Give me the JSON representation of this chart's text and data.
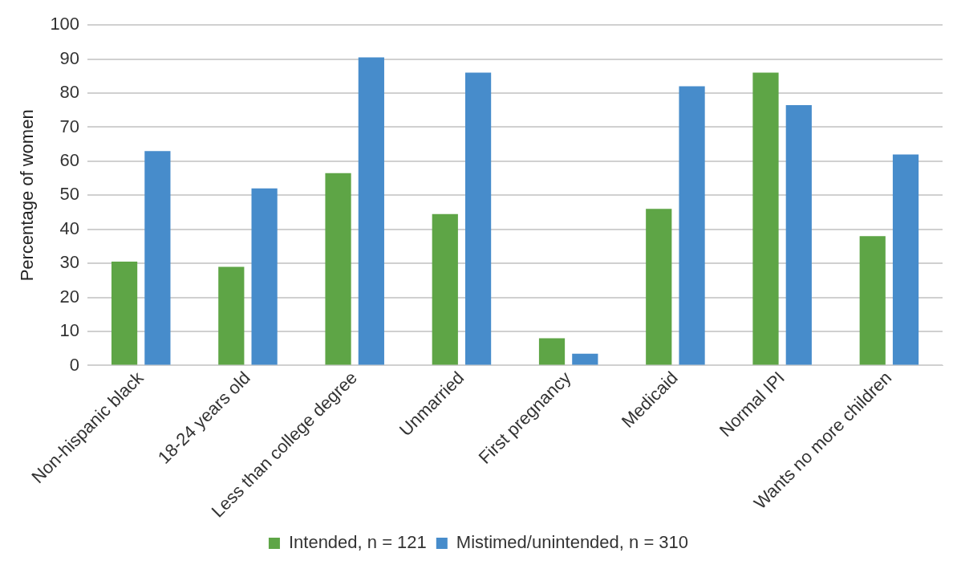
{
  "chart_data": {
    "type": "bar",
    "ylabel": "Percentage of women",
    "categories": [
      "Non-hispanic black",
      "18-24 years old",
      "Less than college degree",
      "Unmarried",
      "First pregnancy",
      "Medicaid",
      "Normal IPI",
      "Wants no more children"
    ],
    "series": [
      {
        "name": "Intended, n = 121",
        "color": "#5ea546",
        "values": [
          30.5,
          29,
          56.5,
          44.5,
          8,
          46,
          86,
          38
        ]
      },
      {
        "name": "Mistimed/unintended, n = 310",
        "color": "#478ccb",
        "values": [
          63,
          52,
          90.5,
          86,
          3.5,
          82,
          76.5,
          62
        ]
      }
    ],
    "ylim": [
      0,
      100
    ],
    "yticks": [
      0,
      10,
      20,
      30,
      40,
      50,
      60,
      70,
      80,
      90,
      100
    ],
    "grid": "y",
    "legend": "bottom"
  }
}
